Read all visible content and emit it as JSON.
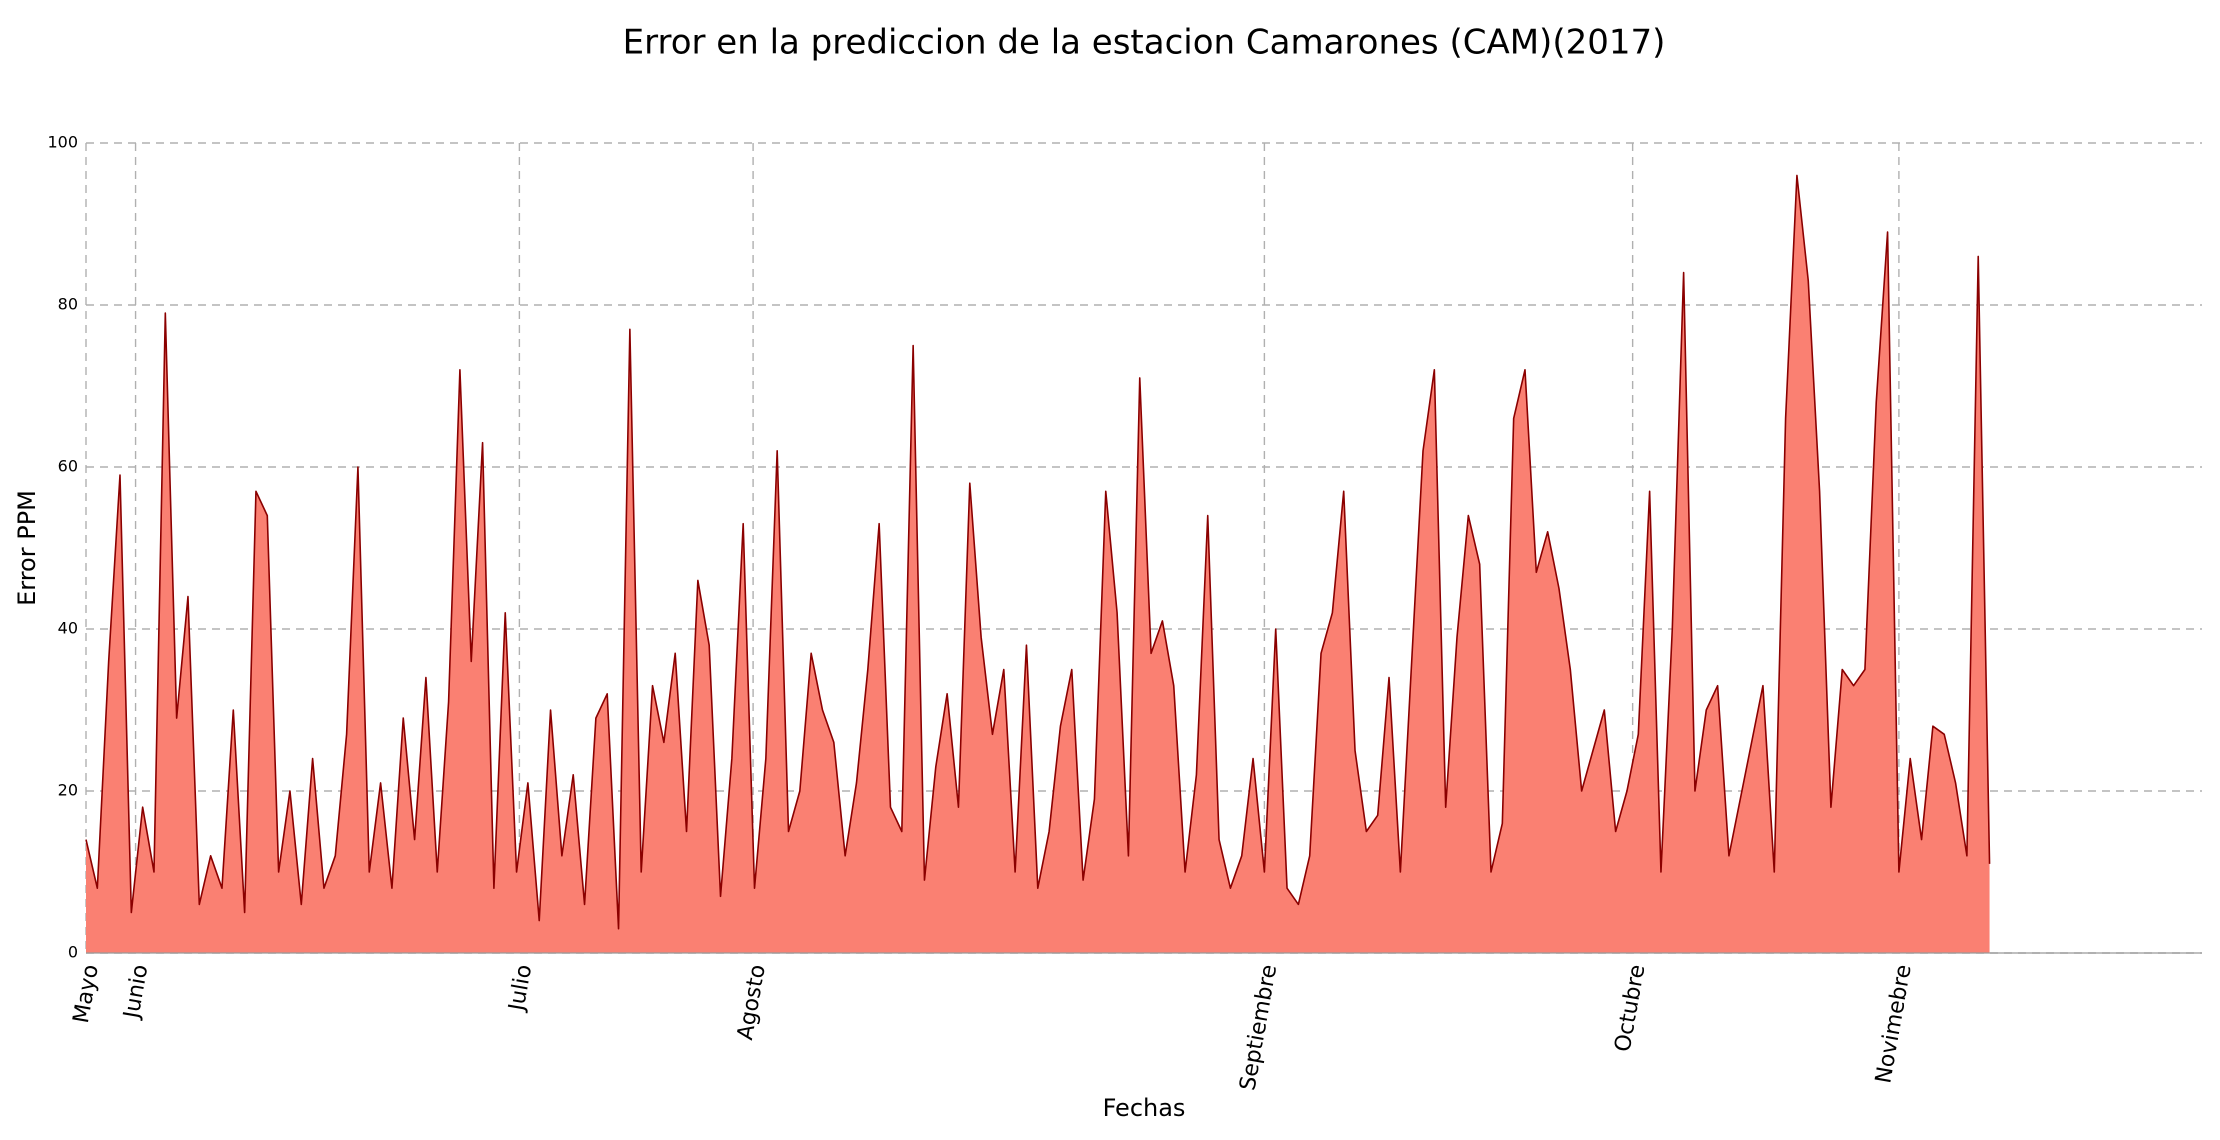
{
  "chart_data": {
    "type": "area",
    "title": "Error en la prediccion de la estacion Camarones (CAM)(2017)",
    "x_label": "Fechas",
    "y_label": "Error PPM",
    "fill_color": "#fa8072",
    "line_color": "#8b0000",
    "xlim": [
      0,
      4482
    ],
    "xticks": [
      {
        "value": 0,
        "label": "Mayo"
      },
      {
        "value": 105,
        "label": "Junio"
      },
      {
        "value": 918,
        "label": "Julio"
      },
      {
        "value": 1413,
        "label": "Agosto"
      },
      {
        "value": 2496,
        "label": "Septiembre"
      },
      {
        "value": 3276,
        "label": "Octubre"
      },
      {
        "value": 3840,
        "label": "Novimebre"
      }
    ],
    "ylim": [
      0,
      100
    ],
    "yticks": [
      0,
      20,
      40,
      60,
      80,
      100
    ],
    "grid": true,
    "x": [
      0,
      24,
      48,
      72,
      96,
      120,
      144,
      168,
      192,
      216,
      240,
      264,
      288,
      312,
      336,
      360,
      384,
      408,
      432,
      456,
      480,
      504,
      528,
      552,
      576,
      600,
      624,
      648,
      672,
      696,
      720,
      744,
      768,
      792,
      816,
      840,
      864,
      888,
      912,
      936,
      960,
      984,
      1008,
      1032,
      1056,
      1080,
      1104,
      1128,
      1152,
      1176,
      1200,
      1224,
      1248,
      1272,
      1296,
      1320,
      1344,
      1368,
      1392,
      1416,
      1440,
      1464,
      1488,
      1512,
      1536,
      1560,
      1584,
      1608,
      1632,
      1656,
      1680,
      1704,
      1728,
      1752,
      1776,
      1800,
      1824,
      1848,
      1872,
      1896,
      1920,
      1944,
      1968,
      1992,
      2016,
      2040,
      2064,
      2088,
      2112,
      2136,
      2160,
      2184,
      2208,
      2232,
      2256,
      2280,
      2304,
      2328,
      2352,
      2376,
      2400,
      2424,
      2448,
      2472,
      2496,
      2520,
      2544,
      2568,
      2592,
      2616,
      2640,
      2664,
      2688,
      2712,
      2736,
      2760,
      2784,
      2808,
      2832,
      2856,
      2880,
      2904,
      2928,
      2952,
      2976,
      3000,
      3024,
      3048,
      3072,
      3096,
      3120,
      3144,
      3168,
      3192,
      3216,
      3240,
      3264,
      3288,
      3312,
      3336,
      3360,
      3384,
      3408,
      3432,
      3456,
      3480,
      3504,
      3528,
      3552,
      3576,
      3600,
      3624,
      3648,
      3672,
      3696,
      3720,
      3744,
      3768,
      3792,
      3816,
      3840,
      3864,
      3888,
      3912,
      3936,
      3960,
      3984,
      4008,
      4032
    ],
    "values": [
      14,
      8,
      36,
      59,
      5,
      18,
      10,
      79,
      29,
      44,
      6,
      12,
      8,
      30,
      5,
      57,
      54,
      10,
      20,
      6,
      24,
      8,
      12,
      27,
      60,
      10,
      21,
      8,
      29,
      14,
      34,
      10,
      31,
      72,
      36,
      63,
      8,
      42,
      10,
      21,
      4,
      30,
      12,
      22,
      6,
      29,
      32,
      3,
      77,
      10,
      33,
      26,
      37,
      15,
      46,
      38,
      7,
      24,
      53,
      8,
      24,
      62,
      15,
      20,
      37,
      30,
      26,
      12,
      21,
      35,
      53,
      18,
      15,
      75,
      9,
      23,
      32,
      18,
      58,
      39,
      27,
      35,
      10,
      38,
      8,
      15,
      28,
      35,
      9,
      19,
      57,
      42,
      12,
      71,
      37,
      41,
      33,
      10,
      22,
      54,
      14,
      8,
      12,
      24,
      10,
      40,
      8,
      6,
      12,
      37,
      42,
      57,
      25,
      15,
      17,
      34,
      10,
      36,
      62,
      72,
      18,
      39,
      54,
      48,
      10,
      16,
      66,
      72,
      47,
      52,
      45,
      35,
      20,
      25,
      30,
      15,
      20,
      27,
      57,
      10,
      40,
      84,
      20,
      30,
      33,
      12,
      19,
      26,
      33,
      10,
      66,
      96,
      83,
      57,
      18,
      35,
      33,
      35,
      68,
      89,
      10,
      24,
      14,
      28,
      27,
      21,
      12,
      86,
      11
    ]
  }
}
